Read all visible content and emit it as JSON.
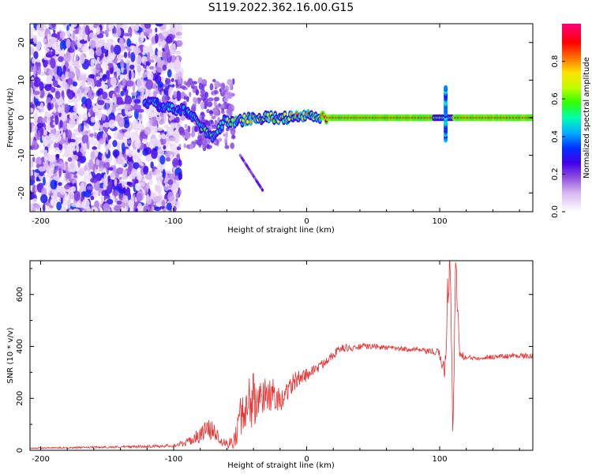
{
  "title": "S119.2022.362.16.00.G15",
  "chart_data": [
    {
      "type": "heatmap",
      "xlabel": "Height of straight line (km)",
      "ylabel": "Frequency (Hz)",
      "xlim": [
        -208,
        170
      ],
      "ylim": [
        -25,
        25
      ],
      "x_ticks": [
        -200,
        -100,
        0,
        100
      ],
      "y_ticks": [
        -20,
        -10,
        0,
        10,
        20
      ],
      "colorbar": {
        "label": "Normalized spectral amplitude",
        "range": [
          0,
          1
        ],
        "ticks": [
          0.0,
          0.2,
          0.4,
          0.6,
          0.8
        ],
        "colormap": [
          "#ffffff",
          "#9370db",
          "#5000e0",
          "#0000ff",
          "#00c0ff",
          "#00ff80",
          "#a0ff00",
          "#ffff00",
          "#ff8000",
          "#ff0000",
          "#ff0080"
        ]
      },
      "ridge": {
        "description_points_km_hz": [
          [
            -118,
            4
          ],
          [
            -108,
            3
          ],
          [
            -100,
            2
          ],
          [
            -92,
            2
          ],
          [
            -85,
            0
          ],
          [
            -78,
            -3
          ],
          [
            -70,
            -5
          ],
          [
            -62,
            -1
          ],
          [
            -52,
            -1
          ],
          [
            -40,
            0
          ],
          [
            -30,
            0
          ],
          [
            -20,
            0
          ],
          [
            -10,
            0
          ],
          [
            0,
            0.5
          ],
          [
            10,
            0
          ],
          [
            20,
            0
          ],
          [
            40,
            0
          ],
          [
            60,
            0
          ],
          [
            80,
            0
          ],
          [
            90,
            0
          ],
          [
            100,
            0
          ],
          [
            110,
            0
          ],
          [
            130,
            0
          ],
          [
            150,
            0
          ],
          [
            170,
            0
          ]
        ]
      }
    },
    {
      "type": "line",
      "xlabel": "Height of straight line (km)",
      "ylabel": "SNR (10 * v/v)",
      "xlim": [
        -208,
        170
      ],
      "ylim": [
        0,
        730
      ],
      "x_ticks": [
        -200,
        -100,
        0,
        100
      ],
      "y_ticks": [
        0,
        200,
        400,
        600
      ],
      "series": [
        {
          "color": "#e83030",
          "x": [
            -208,
            -180,
            -150,
            -120,
            -100,
            -90,
            -80,
            -75,
            -70,
            -65,
            -60,
            -55,
            -50,
            -45,
            -40,
            -35,
            -30,
            -25,
            -20,
            -15,
            -10,
            -5,
            0,
            5,
            10,
            15,
            20,
            25,
            30,
            35,
            40,
            50,
            60,
            70,
            80,
            90,
            95,
            100,
            104,
            106,
            108,
            110,
            112,
            115,
            120,
            140,
            160,
            170
          ],
          "y": [
            8,
            10,
            12,
            15,
            18,
            30,
            60,
            80,
            75,
            45,
            25,
            35,
            110,
            150,
            170,
            190,
            190,
            200,
            180,
            230,
            260,
            280,
            290,
            310,
            320,
            350,
            370,
            390,
            395,
            390,
            400,
            400,
            395,
            390,
            390,
            380,
            380,
            370,
            300,
            600,
            730,
            40,
            730,
            370,
            355,
            360,
            365,
            360
          ],
          "noise_amplitude": [
            2,
            3,
            4,
            5,
            6,
            15,
            30,
            40,
            35,
            25,
            20,
            30,
            80,
            90,
            90,
            70,
            60,
            50,
            40,
            40,
            40,
            30,
            25,
            20,
            20,
            20,
            18,
            15,
            15,
            12,
            12,
            10,
            10,
            10,
            10,
            10,
            15,
            20,
            40,
            80,
            60,
            40,
            60,
            20,
            10,
            10,
            10,
            10
          ]
        }
      ]
    }
  ]
}
